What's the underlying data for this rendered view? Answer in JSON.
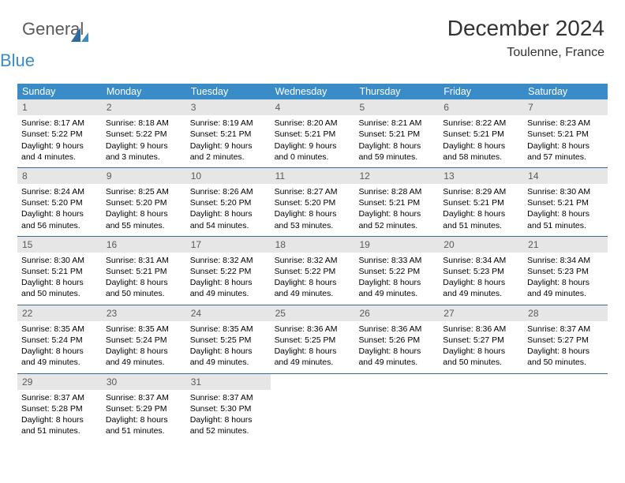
{
  "logo": {
    "line1": "General",
    "line2": "Blue",
    "color_general": "#5a5a5a",
    "color_blue": "#3a8cc9"
  },
  "header": {
    "title": "December 2024",
    "location": "Toulenne, France"
  },
  "styling": {
    "dow_bg": "#3a8cc9",
    "dow_fg": "#ffffff",
    "daynum_bg": "#e6e6e6",
    "daynum_fg": "#5a5a5a",
    "separator": "#3a6a9a",
    "body_fontsize": 10.5,
    "title_fontsize": 28,
    "subtitle_fontsize": 16,
    "dow_fontsize": 12.5
  },
  "daysOfWeek": [
    "Sunday",
    "Monday",
    "Tuesday",
    "Wednesday",
    "Thursday",
    "Friday",
    "Saturday"
  ],
  "weeks": [
    [
      {
        "n": "1",
        "sunrise": "8:17 AM",
        "sunset": "5:22 PM",
        "daylight": "9 hours and 4 minutes."
      },
      {
        "n": "2",
        "sunrise": "8:18 AM",
        "sunset": "5:22 PM",
        "daylight": "9 hours and 3 minutes."
      },
      {
        "n": "3",
        "sunrise": "8:19 AM",
        "sunset": "5:21 PM",
        "daylight": "9 hours and 2 minutes."
      },
      {
        "n": "4",
        "sunrise": "8:20 AM",
        "sunset": "5:21 PM",
        "daylight": "9 hours and 0 minutes."
      },
      {
        "n": "5",
        "sunrise": "8:21 AM",
        "sunset": "5:21 PM",
        "daylight": "8 hours and 59 minutes."
      },
      {
        "n": "6",
        "sunrise": "8:22 AM",
        "sunset": "5:21 PM",
        "daylight": "8 hours and 58 minutes."
      },
      {
        "n": "7",
        "sunrise": "8:23 AM",
        "sunset": "5:21 PM",
        "daylight": "8 hours and 57 minutes."
      }
    ],
    [
      {
        "n": "8",
        "sunrise": "8:24 AM",
        "sunset": "5:20 PM",
        "daylight": "8 hours and 56 minutes."
      },
      {
        "n": "9",
        "sunrise": "8:25 AM",
        "sunset": "5:20 PM",
        "daylight": "8 hours and 55 minutes."
      },
      {
        "n": "10",
        "sunrise": "8:26 AM",
        "sunset": "5:20 PM",
        "daylight": "8 hours and 54 minutes."
      },
      {
        "n": "11",
        "sunrise": "8:27 AM",
        "sunset": "5:20 PM",
        "daylight": "8 hours and 53 minutes."
      },
      {
        "n": "12",
        "sunrise": "8:28 AM",
        "sunset": "5:21 PM",
        "daylight": "8 hours and 52 minutes."
      },
      {
        "n": "13",
        "sunrise": "8:29 AM",
        "sunset": "5:21 PM",
        "daylight": "8 hours and 51 minutes."
      },
      {
        "n": "14",
        "sunrise": "8:30 AM",
        "sunset": "5:21 PM",
        "daylight": "8 hours and 51 minutes."
      }
    ],
    [
      {
        "n": "15",
        "sunrise": "8:30 AM",
        "sunset": "5:21 PM",
        "daylight": "8 hours and 50 minutes."
      },
      {
        "n": "16",
        "sunrise": "8:31 AM",
        "sunset": "5:21 PM",
        "daylight": "8 hours and 50 minutes."
      },
      {
        "n": "17",
        "sunrise": "8:32 AM",
        "sunset": "5:22 PM",
        "daylight": "8 hours and 49 minutes."
      },
      {
        "n": "18",
        "sunrise": "8:32 AM",
        "sunset": "5:22 PM",
        "daylight": "8 hours and 49 minutes."
      },
      {
        "n": "19",
        "sunrise": "8:33 AM",
        "sunset": "5:22 PM",
        "daylight": "8 hours and 49 minutes."
      },
      {
        "n": "20",
        "sunrise": "8:34 AM",
        "sunset": "5:23 PM",
        "daylight": "8 hours and 49 minutes."
      },
      {
        "n": "21",
        "sunrise": "8:34 AM",
        "sunset": "5:23 PM",
        "daylight": "8 hours and 49 minutes."
      }
    ],
    [
      {
        "n": "22",
        "sunrise": "8:35 AM",
        "sunset": "5:24 PM",
        "daylight": "8 hours and 49 minutes."
      },
      {
        "n": "23",
        "sunrise": "8:35 AM",
        "sunset": "5:24 PM",
        "daylight": "8 hours and 49 minutes."
      },
      {
        "n": "24",
        "sunrise": "8:35 AM",
        "sunset": "5:25 PM",
        "daylight": "8 hours and 49 minutes."
      },
      {
        "n": "25",
        "sunrise": "8:36 AM",
        "sunset": "5:25 PM",
        "daylight": "8 hours and 49 minutes."
      },
      {
        "n": "26",
        "sunrise": "8:36 AM",
        "sunset": "5:26 PM",
        "daylight": "8 hours and 49 minutes."
      },
      {
        "n": "27",
        "sunrise": "8:36 AM",
        "sunset": "5:27 PM",
        "daylight": "8 hours and 50 minutes."
      },
      {
        "n": "28",
        "sunrise": "8:37 AM",
        "sunset": "5:27 PM",
        "daylight": "8 hours and 50 minutes."
      }
    ],
    [
      {
        "n": "29",
        "sunrise": "8:37 AM",
        "sunset": "5:28 PM",
        "daylight": "8 hours and 51 minutes."
      },
      {
        "n": "30",
        "sunrise": "8:37 AM",
        "sunset": "5:29 PM",
        "daylight": "8 hours and 51 minutes."
      },
      {
        "n": "31",
        "sunrise": "8:37 AM",
        "sunset": "5:30 PM",
        "daylight": "8 hours and 52 minutes."
      },
      {
        "empty": true
      },
      {
        "empty": true
      },
      {
        "empty": true
      },
      {
        "empty": true
      }
    ]
  ],
  "labels": {
    "sunrise": "Sunrise:",
    "sunset": "Sunset:",
    "daylight": "Daylight:"
  }
}
